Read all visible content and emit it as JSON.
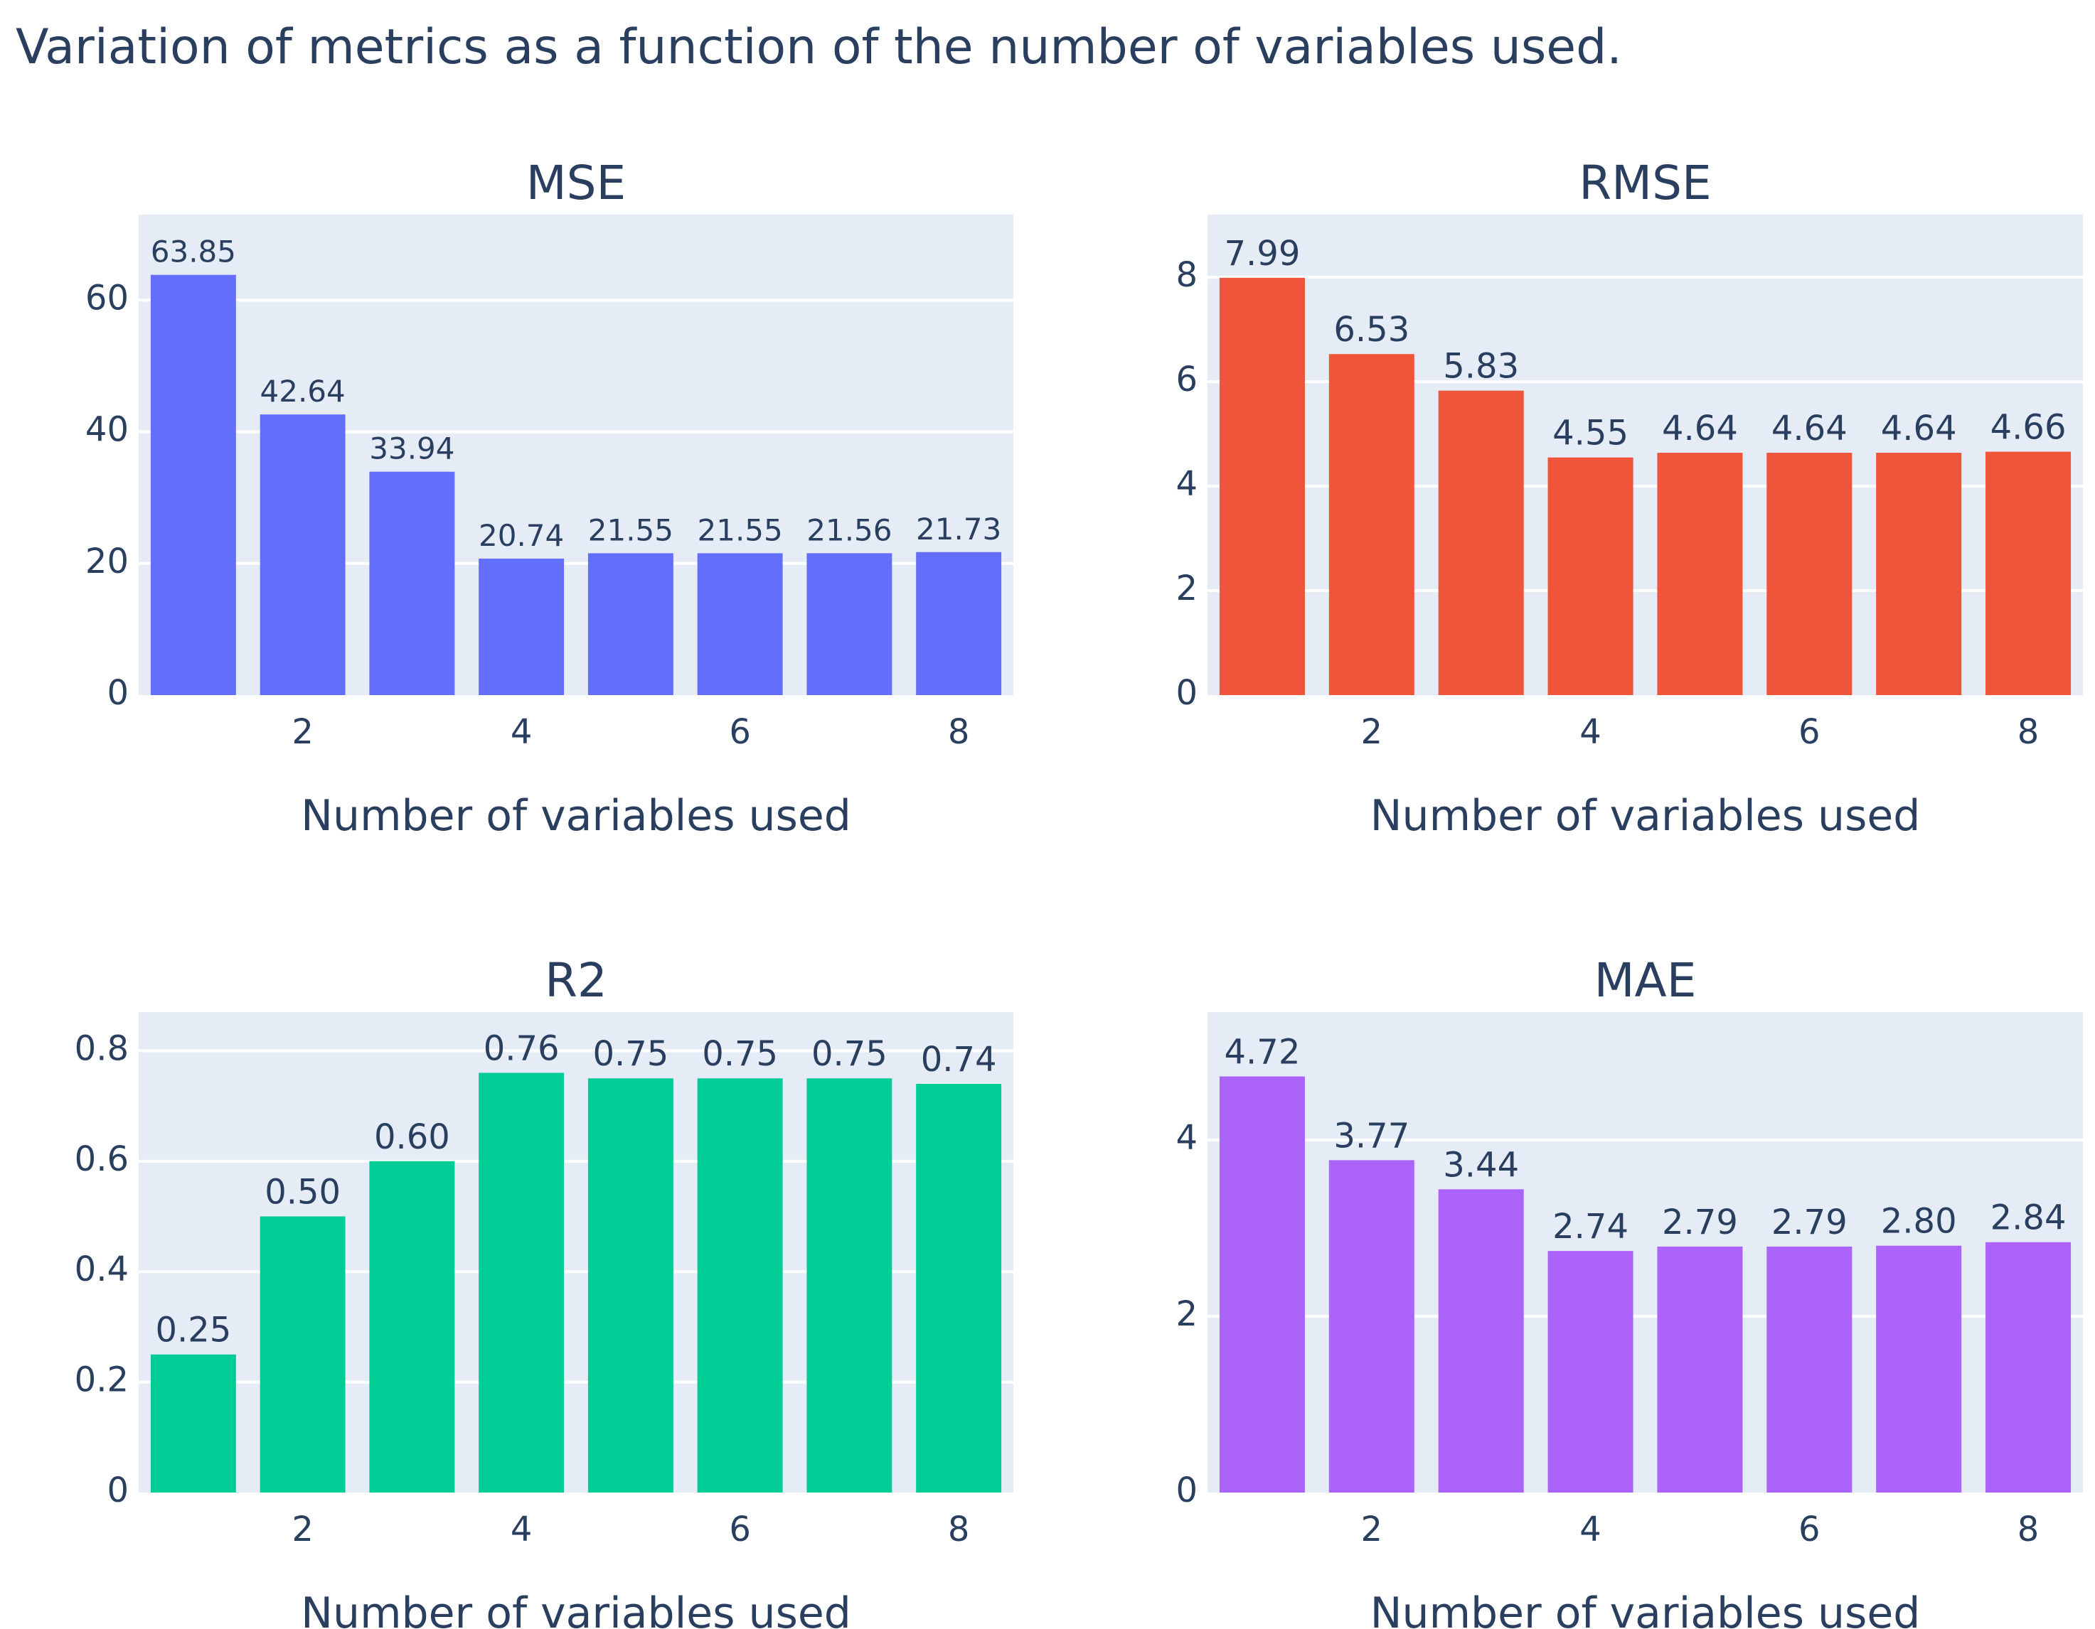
{
  "title": "Variation of metrics as a function of the number of variables used.",
  "chart_data": [
    {
      "type": "bar",
      "title": "MSE",
      "color": "#636efa",
      "x": [
        1,
        2,
        3,
        4,
        5,
        6,
        7,
        8
      ],
      "values": [
        63.85,
        42.64,
        33.94,
        20.74,
        21.55,
        21.55,
        21.56,
        21.73
      ],
      "value_labels": [
        "63.85",
        "42.64",
        "33.94",
        "20.74",
        "21.55",
        "21.55",
        "21.56",
        "21.73"
      ],
      "xlabel": "Number of variables used",
      "ylabel": "",
      "xticks": [
        2,
        4,
        6,
        8
      ],
      "yticks": [
        0,
        20,
        40,
        60
      ],
      "ytick_labels": [
        "0",
        "20",
        "40",
        "60"
      ],
      "ylim": [
        0,
        73
      ],
      "grid": true
    },
    {
      "type": "bar",
      "title": "RMSE",
      "color": "#ef553b",
      "x": [
        1,
        2,
        3,
        4,
        5,
        6,
        7,
        8
      ],
      "values": [
        7.99,
        6.53,
        5.83,
        4.55,
        4.64,
        4.64,
        4.64,
        4.66
      ],
      "value_labels": [
        "7.99",
        "6.53",
        "5.83",
        "4.55",
        "4.64",
        "4.64",
        "4.64",
        "4.66"
      ],
      "xlabel": "Number of variables used",
      "ylabel": "",
      "xticks": [
        2,
        4,
        6,
        8
      ],
      "yticks": [
        0,
        2,
        4,
        6,
        8
      ],
      "ytick_labels": [
        "0",
        "2",
        "4",
        "6",
        "8"
      ],
      "ylim": [
        0,
        9.2
      ],
      "grid": true
    },
    {
      "type": "bar",
      "title": "R2",
      "color": "#00cc96",
      "x": [
        1,
        2,
        3,
        4,
        5,
        6,
        7,
        8
      ],
      "values": [
        0.25,
        0.5,
        0.6,
        0.76,
        0.75,
        0.75,
        0.75,
        0.74
      ],
      "value_labels": [
        "0.25",
        "0.50",
        "0.60",
        "0.76",
        "0.75",
        "0.75",
        "0.75",
        "0.74"
      ],
      "xlabel": "Number of variables used",
      "ylabel": "",
      "xticks": [
        2,
        4,
        6,
        8
      ],
      "yticks": [
        0,
        0.2,
        0.4,
        0.6,
        0.8
      ],
      "ytick_labels": [
        "0",
        "0.2",
        "0.4",
        "0.6",
        "0.8"
      ],
      "ylim": [
        0,
        0.87
      ],
      "grid": true
    },
    {
      "type": "bar",
      "title": "MAE",
      "color": "#ab63fa",
      "x": [
        1,
        2,
        3,
        4,
        5,
        6,
        7,
        8
      ],
      "values": [
        4.72,
        3.77,
        3.44,
        2.74,
        2.79,
        2.79,
        2.8,
        2.84
      ],
      "value_labels": [
        "4.72",
        "3.77",
        "3.44",
        "2.74",
        "2.79",
        "2.79",
        "2.80",
        "2.84"
      ],
      "xlabel": "Number of variables used",
      "ylabel": "",
      "xticks": [
        2,
        4,
        6,
        8
      ],
      "yticks": [
        0,
        2,
        4
      ],
      "ytick_labels": [
        "0",
        "2",
        "4"
      ],
      "ylim": [
        0,
        5.45
      ],
      "grid": true
    }
  ]
}
